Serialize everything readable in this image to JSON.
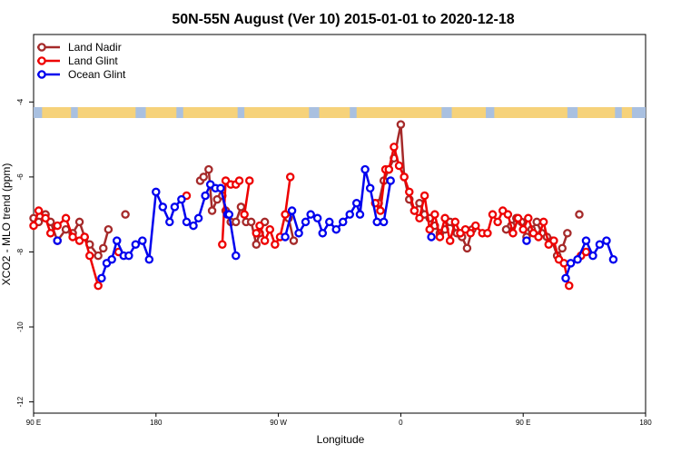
{
  "chart_data": {
    "type": "line",
    "title": "50N-55N August (Ver 10)   2015-01-01 to 2020-12-18",
    "xlabel": "Longitude",
    "ylabel": "XCO2 - MLO trend (ppm)",
    "xlim": [
      -90,
      270
    ],
    "ylim": [
      -12.3,
      -2.2
    ],
    "xticks": [
      {
        "value": -90,
        "label": "90 E"
      },
      {
        "value": -18,
        "label": "180"
      },
      {
        "value": 54,
        "label": "90 W"
      },
      {
        "value": 126,
        "label": "0"
      },
      {
        "value": 198,
        "label": "90 E"
      },
      {
        "value": 270,
        "label": "180"
      }
    ],
    "yticks": [
      {
        "value": -4,
        "label": "-4"
      },
      {
        "value": -6,
        "label": "-6"
      },
      {
        "value": -8,
        "label": "-8"
      },
      {
        "value": -10,
        "label": "-10"
      },
      {
        "value": -12,
        "label": "-12"
      }
    ],
    "legend_position": "top-left",
    "series": [
      {
        "name": "Land Nadir",
        "color": "#a52a2a",
        "segments": [
          [
            [
              -90,
              -7.1
            ],
            [
              -87,
              -7.2
            ],
            [
              -83,
              -7.0
            ],
            [
              -80,
              -7.2
            ],
            [
              -76,
              -7.7
            ],
            [
              -71,
              -7.4
            ],
            [
              -67,
              -7.5
            ],
            [
              -63,
              -7.2
            ],
            [
              -60,
              -7.6
            ],
            [
              -57,
              -7.8
            ],
            [
              -52,
              -8.1
            ],
            [
              -49,
              -7.9
            ],
            [
              -46,
              -7.4
            ]
          ],
          [
            [
              -36,
              -7.0
            ]
          ],
          [
            [
              8,
              -6.1
            ],
            [
              10,
              -6.0
            ],
            [
              13,
              -5.8
            ],
            [
              15,
              -6.9
            ],
            [
              18,
              -6.6
            ],
            [
              21,
              -6.5
            ],
            [
              23,
              -6.9
            ],
            [
              26,
              -7.2
            ],
            [
              29,
              -7.2
            ],
            [
              32,
              -6.8
            ],
            [
              35,
              -7.2
            ],
            [
              38,
              -7.2
            ],
            [
              41,
              -7.8
            ],
            [
              43,
              -7.5
            ],
            [
              46,
              -7.2
            ]
          ],
          [
            [
              60,
              -7.1
            ],
            [
              63,
              -7.7
            ]
          ],
          [
            [
              113,
              -6.7
            ],
            [
              116,
              -6.1
            ],
            [
              119,
              -5.8
            ],
            [
              122,
              -5.5
            ],
            [
              126,
              -4.6
            ],
            [
              128,
              -6.0
            ],
            [
              131,
              -6.6
            ],
            [
              134,
              -6.9
            ],
            [
              137,
              -6.7
            ],
            [
              140,
              -7.0
            ],
            [
              143,
              -7.1
            ],
            [
              146,
              -7.3
            ],
            [
              149,
              -7.5
            ],
            [
              152,
              -7.4
            ],
            [
              155,
              -7.2
            ],
            [
              159,
              -7.5
            ],
            [
              162,
              -7.6
            ],
            [
              165,
              -7.9
            ],
            [
              168,
              -7.4
            ]
          ],
          [
            [
              188,
              -7.4
            ],
            [
              191,
              -7.3
            ],
            [
              194,
              -7.1
            ],
            [
              197,
              -7.2
            ],
            [
              200,
              -7.6
            ],
            [
              203,
              -7.4
            ],
            [
              206,
              -7.2
            ],
            [
              209,
              -7.5
            ],
            [
              212,
              -7.6
            ],
            [
              215,
              -7.7
            ],
            [
              218,
              -8.1
            ],
            [
              221,
              -7.9
            ],
            [
              224,
              -7.5
            ]
          ],
          [
            [
              231,
              -7.0
            ]
          ]
        ]
      },
      {
        "name": "Land Glint",
        "color": "#ee0000",
        "segments": [
          [
            [
              -90,
              -7.3
            ],
            [
              -87,
              -6.9
            ],
            [
              -83,
              -7.1
            ],
            [
              -80,
              -7.5
            ],
            [
              -76,
              -7.3
            ],
            [
              -71,
              -7.1
            ],
            [
              -67,
              -7.6
            ],
            [
              -63,
              -7.7
            ],
            [
              -60,
              -7.6
            ],
            [
              -57,
              -8.1
            ],
            [
              -52,
              -8.9
            ]
          ],
          [
            [
              -40,
              -8.0
            ]
          ],
          [
            [
              0,
              -6.5
            ]
          ],
          [
            [
              21,
              -7.8
            ],
            [
              23,
              -6.1
            ],
            [
              26,
              -6.2
            ],
            [
              29,
              -6.2
            ],
            [
              31,
              -6.1
            ]
          ],
          [
            [
              34,
              -7.0
            ],
            [
              37,
              -6.1
            ]
          ],
          [
            [
              41,
              -7.5
            ],
            [
              43,
              -7.3
            ],
            [
              46,
              -7.7
            ],
            [
              49,
              -7.4
            ],
            [
              52,
              -7.8
            ],
            [
              55,
              -7.6
            ],
            [
              58,
              -7.0
            ],
            [
              61,
              -6.0
            ]
          ],
          [
            [
              111,
              -6.7
            ],
            [
              114,
              -6.9
            ],
            [
              117,
              -5.8
            ],
            [
              119,
              -5.8
            ],
            [
              122,
              -5.2
            ],
            [
              125,
              -5.7
            ],
            [
              128,
              -6.0
            ],
            [
              131,
              -6.4
            ],
            [
              134,
              -6.9
            ],
            [
              137,
              -7.1
            ],
            [
              140,
              -6.5
            ],
            [
              143,
              -7.4
            ],
            [
              146,
              -7.0
            ],
            [
              149,
              -7.6
            ],
            [
              152,
              -7.1
            ],
            [
              155,
              -7.7
            ],
            [
              158,
              -7.2
            ],
            [
              161,
              -7.5
            ],
            [
              164,
              -7.4
            ],
            [
              167,
              -7.5
            ],
            [
              170,
              -7.3
            ],
            [
              174,
              -7.5
            ],
            [
              177,
              -7.5
            ],
            [
              180,
              -7.0
            ],
            [
              183,
              -7.2
            ],
            [
              186,
              -6.9
            ],
            [
              189,
              -7.0
            ],
            [
              192,
              -7.5
            ],
            [
              195,
              -7.1
            ],
            [
              198,
              -7.4
            ],
            [
              201,
              -7.1
            ],
            [
              204,
              -7.5
            ],
            [
              207,
              -7.6
            ],
            [
              210,
              -7.2
            ],
            [
              213,
              -7.8
            ],
            [
              216,
              -7.7
            ],
            [
              219,
              -8.2
            ],
            [
              222,
              -8.3
            ],
            [
              225,
              -8.9
            ]
          ],
          [
            [
              232,
              -8.1
            ],
            [
              235,
              -8.0
            ]
          ]
        ]
      },
      {
        "name": "Ocean Glint",
        "color": "#0000ee",
        "segments": [
          [
            [
              -76,
              -7.7
            ]
          ],
          [
            [
              -50,
              -8.7
            ],
            [
              -47,
              -8.3
            ],
            [
              -44,
              -8.2
            ],
            [
              -41,
              -7.7
            ],
            [
              -37,
              -8.1
            ],
            [
              -34,
              -8.1
            ],
            [
              -30,
              -7.8
            ],
            [
              -26,
              -7.7
            ],
            [
              -22,
              -8.2
            ],
            [
              -18,
              -6.4
            ],
            [
              -14,
              -6.8
            ],
            [
              -10,
              -7.2
            ],
            [
              -7,
              -6.8
            ],
            [
              -3,
              -6.6
            ],
            [
              0,
              -7.2
            ],
            [
              4,
              -7.3
            ],
            [
              7,
              -7.1
            ],
            [
              11,
              -6.5
            ],
            [
              14,
              -6.2
            ],
            [
              17,
              -6.3
            ],
            [
              20,
              -6.3
            ],
            [
              24,
              -7.0
            ]
          ],
          [
            [
              25,
              -7.0
            ],
            [
              29,
              -8.1
            ]
          ],
          [
            [
              58,
              -7.6
            ],
            [
              62,
              -6.9
            ],
            [
              66,
              -7.5
            ],
            [
              70,
              -7.2
            ],
            [
              73,
              -7.0
            ],
            [
              77,
              -7.1
            ],
            [
              80,
              -7.5
            ],
            [
              84,
              -7.2
            ],
            [
              88,
              -7.4
            ],
            [
              92,
              -7.2
            ],
            [
              96,
              -7.0
            ],
            [
              100,
              -6.7
            ],
            [
              102,
              -7.0
            ],
            [
              105,
              -5.8
            ],
            [
              108,
              -6.3
            ],
            [
              112,
              -7.2
            ],
            [
              116,
              -7.2
            ],
            [
              120,
              -6.1
            ]
          ],
          [
            [
              144,
              -7.6
            ]
          ],
          [
            [
              200,
              -7.7
            ]
          ],
          [
            [
              223,
              -8.7
            ],
            [
              226,
              -8.3
            ],
            [
              230,
              -8.2
            ],
            [
              235,
              -7.7
            ],
            [
              239,
              -8.1
            ],
            [
              243,
              -7.8
            ],
            [
              247,
              -7.7
            ],
            [
              251,
              -8.2
            ]
          ]
        ]
      }
    ]
  }
}
